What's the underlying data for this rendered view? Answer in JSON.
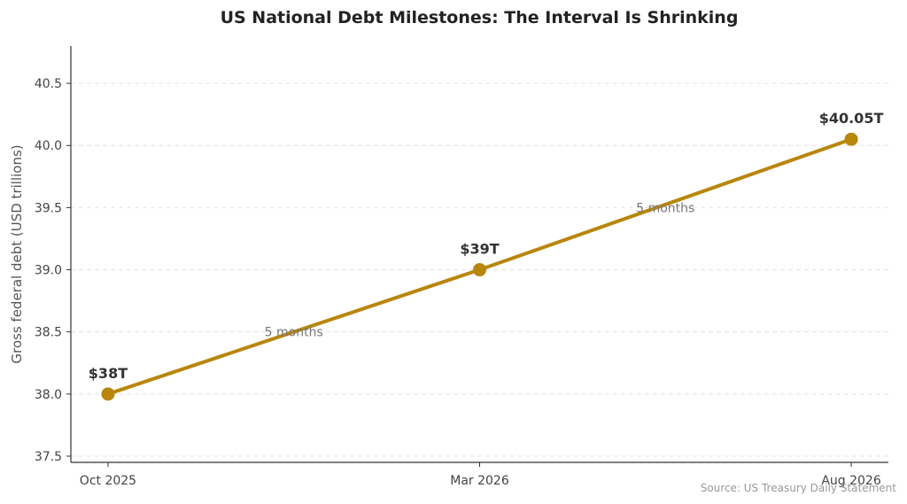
{
  "chart_data": {
    "type": "line",
    "title": "US National Debt Milestones: The Interval Is Shrinking",
    "xlabel": "",
    "ylabel": "Gross federal debt (USD trillions)",
    "x": [
      "Oct 2025",
      "Mar 2026",
      "Aug 2026"
    ],
    "x_months": [
      0,
      5,
      10
    ],
    "series": [
      {
        "values": [
          38.0,
          39.0,
          40.05
        ],
        "color": "#b8860b"
      }
    ],
    "data_labels": [
      "$38T",
      "$39T",
      "$40.05T"
    ],
    "annotations": [
      {
        "text": "5 months",
        "x_month": 2.5,
        "y": 38.5
      },
      {
        "text": "5 months",
        "x_month": 7.5,
        "y": 39.5
      }
    ],
    "ylim": [
      37.45,
      40.8
    ],
    "yticks": [
      "37.5",
      "38.0",
      "38.5",
      "39.0",
      "39.5",
      "40.0",
      "40.5"
    ],
    "grid": true,
    "source": "Source: US Treasury Daily Statement"
  }
}
